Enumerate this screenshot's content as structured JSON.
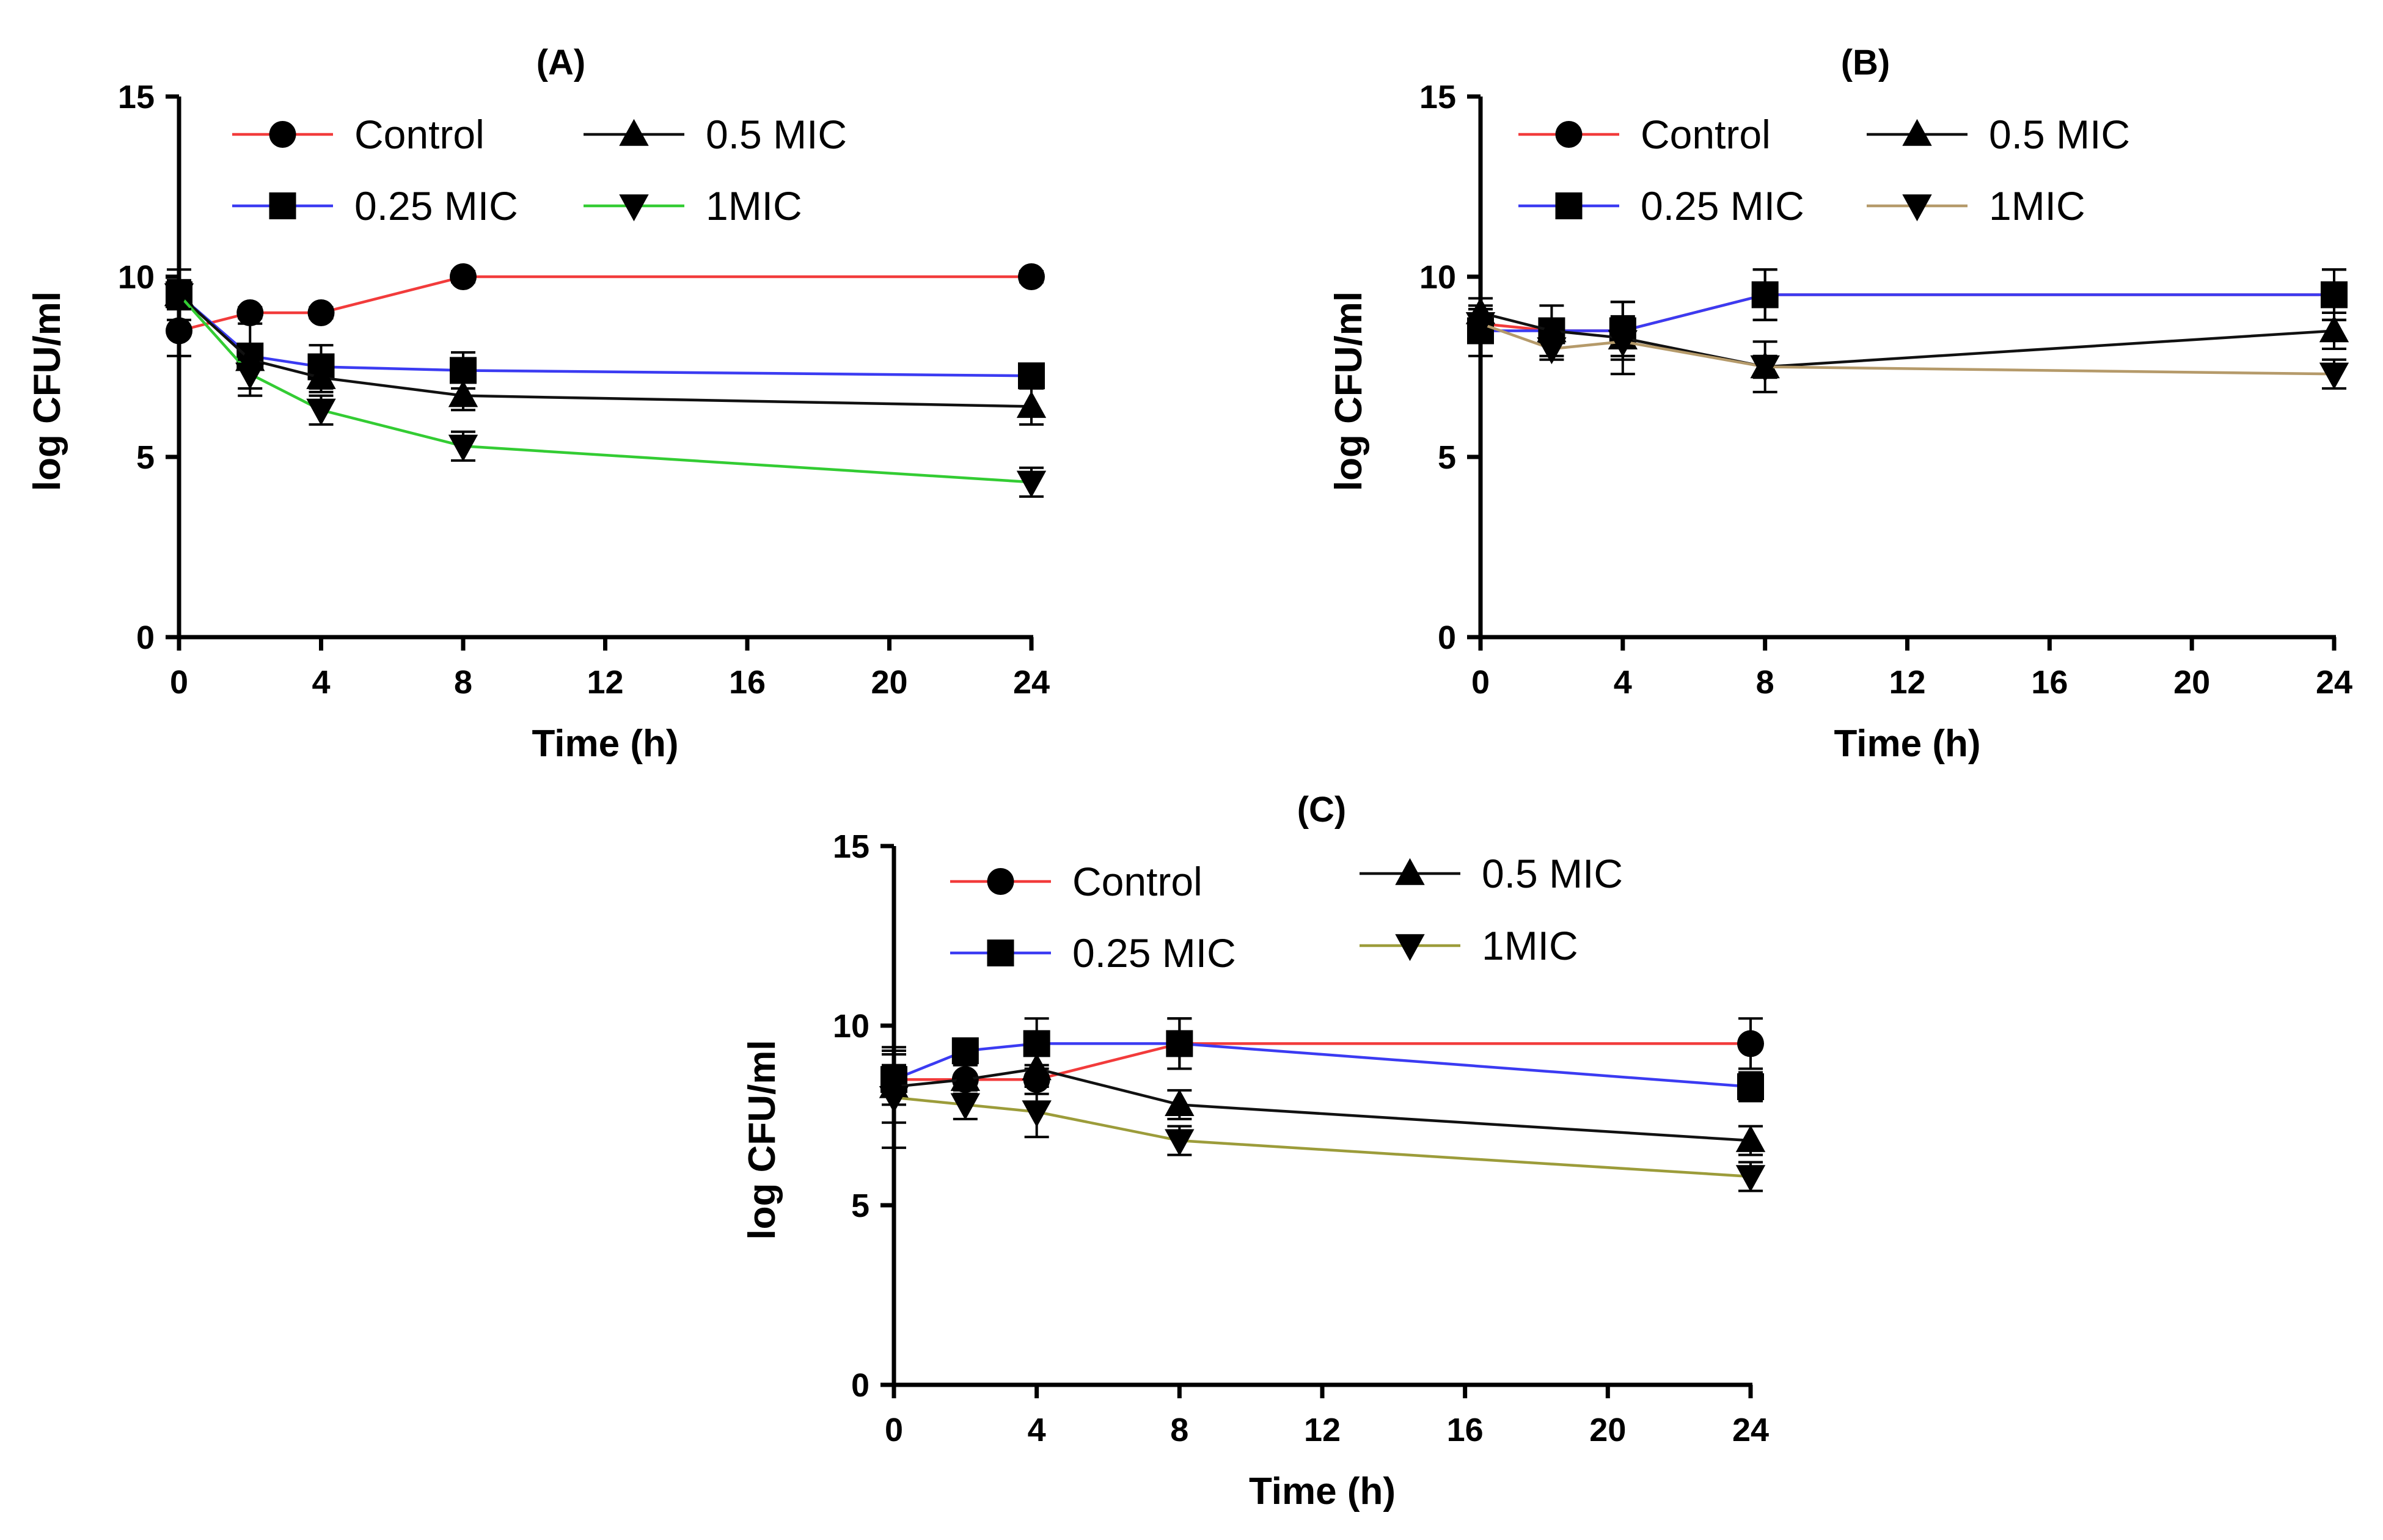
{
  "chart_data": [
    {
      "type": "line",
      "title": "(A)",
      "xlabel": "Time (h)",
      "ylabel": "log CFU/ml",
      "xlim": [
        0,
        24
      ],
      "ylim": [
        0,
        15
      ],
      "xticks": [
        "0",
        "4",
        "8",
        "12",
        "16",
        "20",
        "24"
      ],
      "yticks": [
        "0",
        "5",
        "10",
        "15"
      ],
      "x": [
        0,
        2,
        4,
        8,
        24
      ],
      "series": [
        {
          "name": "Control",
          "marker": "circle",
          "color": "#f23b3b",
          "values": [
            8.5,
            9.0,
            9.0,
            10.0,
            10.0
          ],
          "errors": [
            0.7,
            0.15,
            0.15,
            0.15,
            0.15
          ]
        },
        {
          "name": "0.25 MIC",
          "marker": "square",
          "color": "#3b3bf2",
          "values": [
            9.5,
            7.8,
            7.5,
            7.4,
            7.25
          ],
          "errors": [
            0.7,
            0.3,
            0.6,
            0.5,
            0.3
          ]
        },
        {
          "name": "0.5 MIC",
          "marker": "triangle-up",
          "color": "#111111",
          "values": [
            9.5,
            7.7,
            7.2,
            6.7,
            6.4
          ],
          "errors": [
            0.4,
            1.0,
            0.4,
            0.4,
            0.5
          ]
        },
        {
          "name": "1MIC",
          "marker": "triangle-down",
          "color": "#33cc33",
          "values": [
            9.5,
            7.3,
            6.3,
            5.3,
            4.3
          ],
          "errors": [
            0.4,
            0.4,
            0.4,
            0.4,
            0.4
          ]
        }
      ]
    },
    {
      "type": "line",
      "title": "(B)",
      "xlabel": "Time (h)",
      "ylabel": "log CFU/ml",
      "xlim": [
        0,
        24
      ],
      "ylim": [
        0,
        15
      ],
      "xticks": [
        "0",
        "4",
        "8",
        "12",
        "16",
        "20",
        "24"
      ],
      "yticks": [
        "0",
        "5",
        "10",
        "15"
      ],
      "x": [
        0,
        2,
        4,
        8,
        24
      ],
      "series": [
        {
          "name": "Control",
          "marker": "circle",
          "color": "#f23b3b",
          "values": [
            8.7,
            8.5,
            8.5,
            9.5,
            9.5
          ],
          "errors": [
            0.4,
            0.3,
            0.4,
            0.7,
            0.7
          ]
        },
        {
          "name": "0.25 MIC",
          "marker": "square",
          "color": "#3b3bf2",
          "values": [
            8.5,
            8.5,
            8.5,
            9.5,
            9.5
          ],
          "errors": [
            0.7,
            0.7,
            0.8,
            0.7,
            0.7
          ]
        },
        {
          "name": "0.5 MIC",
          "marker": "triangle-up",
          "color": "#111111",
          "values": [
            9.0,
            8.5,
            8.3,
            7.5,
            8.5
          ],
          "errors": [
            0.4,
            0.3,
            1.0,
            0.7,
            0.5
          ]
        },
        {
          "name": "1MIC",
          "marker": "triangle-down",
          "color": "#b59a6a",
          "values": [
            8.7,
            8.0,
            8.2,
            7.5,
            7.3
          ],
          "errors": [
            0.4,
            0.3,
            0.4,
            0.3,
            0.4
          ]
        }
      ]
    },
    {
      "type": "line",
      "title": "(C)",
      "xlabel": "Time (h)",
      "ylabel": "log CFU/ml",
      "xlim": [
        0,
        24
      ],
      "ylim": [
        0,
        15
      ],
      "xticks": [
        "0",
        "4",
        "8",
        "12",
        "16",
        "20",
        "24"
      ],
      "yticks": [
        "0",
        "5",
        "10",
        "15"
      ],
      "x": [
        0,
        2,
        4,
        8,
        24
      ],
      "series": [
        {
          "name": "Control",
          "marker": "circle",
          "color": "#f23b3b",
          "values": [
            8.5,
            8.5,
            8.5,
            9.5,
            9.5
          ],
          "errors": [
            0.4,
            0.4,
            0.4,
            0.7,
            0.7
          ]
        },
        {
          "name": "0.25 MIC",
          "marker": "square",
          "color": "#3b3bf2",
          "values": [
            8.5,
            9.3,
            9.5,
            9.5,
            8.3
          ],
          "errors": [
            0.7,
            0.3,
            0.7,
            0.7,
            0.4
          ]
        },
        {
          "name": "0.5 MIC",
          "marker": "triangle-up",
          "color": "#111111",
          "values": [
            8.3,
            8.5,
            8.8,
            7.8,
            6.8
          ],
          "errors": [
            1.0,
            0.4,
            0.4,
            0.4,
            0.4
          ]
        },
        {
          "name": "1MIC",
          "marker": "triangle-down",
          "color": "#9c9c3a",
          "values": [
            8.0,
            7.8,
            7.6,
            6.8,
            5.8
          ],
          "errors": [
            1.4,
            0.4,
            0.7,
            0.4,
            0.4
          ]
        }
      ]
    }
  ]
}
